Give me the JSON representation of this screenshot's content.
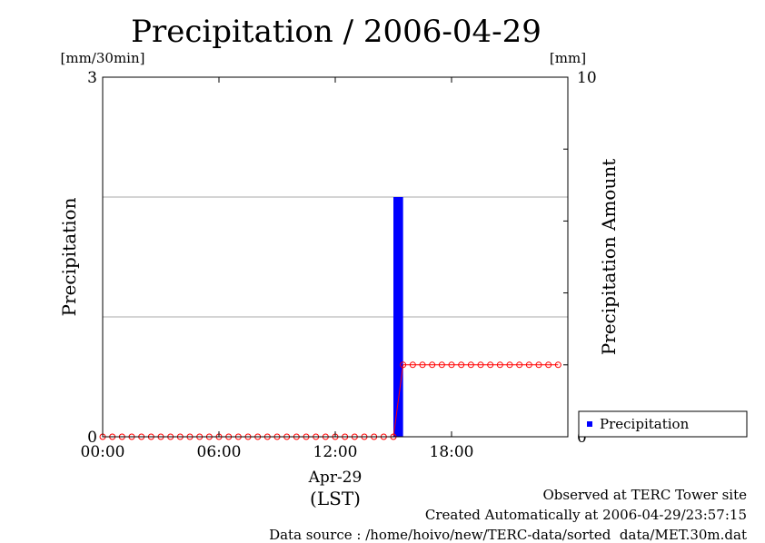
{
  "chart_data": {
    "type": "bar",
    "title": "Precipitation / 2006-04-29",
    "left_unit": "[mm/30min]",
    "right_unit": "[mm]",
    "ylabel_left": "Precipitation",
    "ylabel_right": "Precipitation Amount",
    "ylim_left": [
      0,
      3
    ],
    "ylim_right": [
      0,
      10
    ],
    "left_tick_labels": [
      "0",
      "3"
    ],
    "right_tick_labels": [
      "0",
      "10"
    ],
    "right_minor_ticks": [
      2,
      4,
      6,
      8
    ],
    "gridlines_left": [
      1,
      2
    ],
    "x_tick_labels": [
      "00:00",
      "06:00",
      "12:00",
      "18:00"
    ],
    "x_tick_hours": [
      0,
      6,
      12,
      18
    ],
    "xlim_hours": [
      0,
      24
    ],
    "xlabel_date": "Apr-29",
    "xlabel_tz": "(LST)",
    "legend": [
      {
        "name": "Precipitation",
        "color": "#0000ff"
      }
    ],
    "legend_position": "bottom-right outside",
    "series": [
      {
        "name": "Precipitation",
        "kind": "bar",
        "axis": "left",
        "color": "#0000ff",
        "start_hours": [
          15.0
        ],
        "values": [
          2.0
        ],
        "interval_hours": 0.5
      },
      {
        "kind": "line-circles",
        "axis": "right",
        "color": "#ff0000",
        "x_hours": [
          0.0,
          0.5,
          1.0,
          1.5,
          2.0,
          2.5,
          3.0,
          3.5,
          4.0,
          4.5,
          5.0,
          5.5,
          6.0,
          6.5,
          7.0,
          7.5,
          8.0,
          8.5,
          9.0,
          9.5,
          10.0,
          10.5,
          11.0,
          11.5,
          12.0,
          12.5,
          13.0,
          13.5,
          14.0,
          14.5,
          15.0,
          15.5,
          16.0,
          16.5,
          17.0,
          17.5,
          18.0,
          18.5,
          19.0,
          19.5,
          20.0,
          20.5,
          21.0,
          21.5,
          22.0,
          22.5,
          23.0,
          23.5
        ],
        "values": [
          0,
          0,
          0,
          0,
          0,
          0,
          0,
          0,
          0,
          0,
          0,
          0,
          0,
          0,
          0,
          0,
          0,
          0,
          0,
          0,
          0,
          0,
          0,
          0,
          0,
          0,
          0,
          0,
          0,
          0,
          0,
          2.0,
          2.0,
          2.0,
          2.0,
          2.0,
          2.0,
          2.0,
          2.0,
          2.0,
          2.0,
          2.0,
          2.0,
          2.0,
          2.0,
          2.0,
          2.0,
          2.0
        ]
      }
    ]
  },
  "footer": {
    "observed": "Observed at TERC Tower site",
    "created": "Created Automatically at 2006-04-29/23:57:15",
    "source": "Data source : /home/hoivo/new/TERC-data/sorted  data/MET.30m.dat"
  },
  "colors": {
    "bar": "#0000ff",
    "cumulative": "#ff0000",
    "grid": "#aaaaaa"
  }
}
